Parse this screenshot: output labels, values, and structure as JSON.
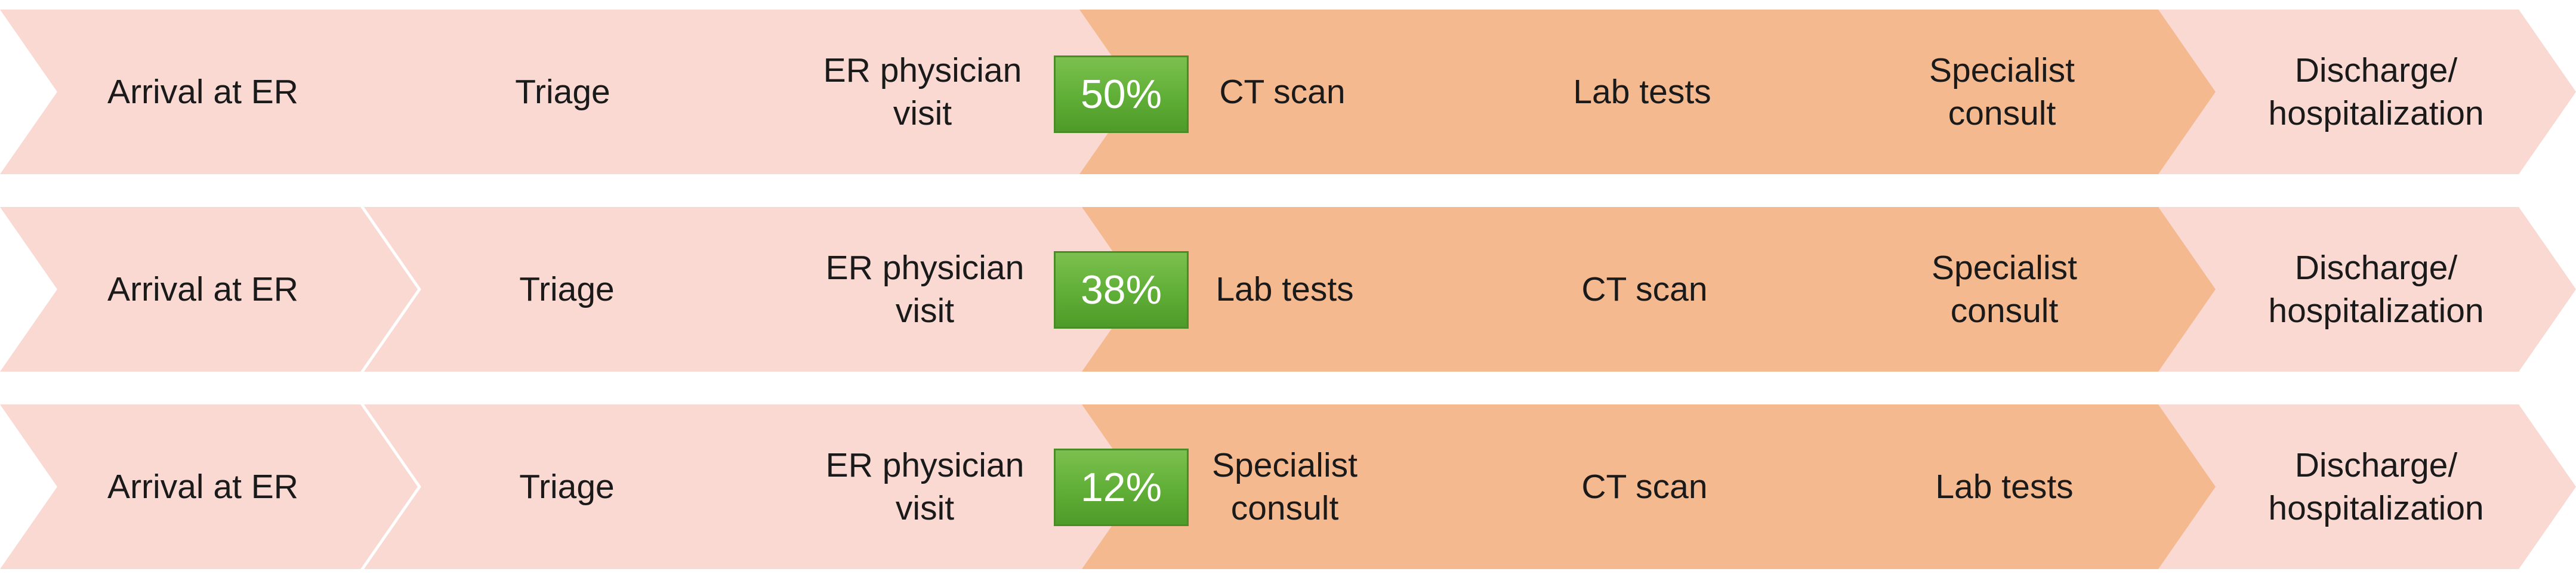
{
  "rows": [
    {
      "percentage": "50%",
      "steps": [
        "Arrival at ER",
        "Triage",
        "ER physician\nvisit",
        "CT scan",
        "Lab tests",
        "Specialist\nconsult",
        "Discharge/\nhospitalization"
      ]
    },
    {
      "percentage": "38%",
      "steps": [
        "Arrival at ER",
        "Triage",
        "ER physician\nvisit",
        "Lab tests",
        "CT scan",
        "Specialist\nconsult",
        "Discharge/\nhospitalization"
      ]
    },
    {
      "percentage": "12%",
      "steps": [
        "Arrival at ER",
        "Triage",
        "ER physician\nvisit",
        "Specialist\nconsult",
        "CT scan",
        "Lab tests",
        "Discharge/\nhospitalization"
      ]
    }
  ],
  "colors": {
    "common_step": "#f9d9d1",
    "variable_step": "#f5b98f",
    "badge": "#5fae36",
    "badge_text": "#ffffff"
  }
}
